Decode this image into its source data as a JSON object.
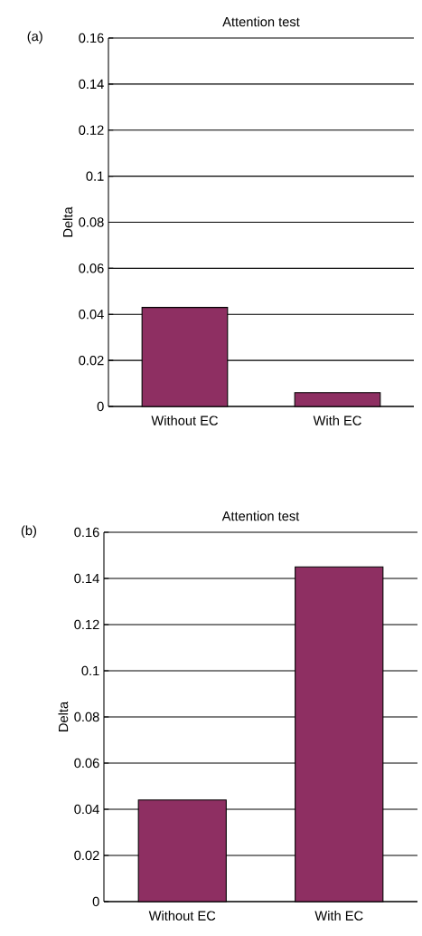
{
  "chart_data": [
    {
      "type": "bar",
      "title": "Attention test",
      "ylabel": "Delta",
      "categories": [
        "Without EC",
        "With EC"
      ],
      "values": [
        0.043,
        0.006
      ],
      "color": "#8e2f62",
      "ylim": [
        0,
        0.16
      ],
      "yticks": [
        0,
        0.02,
        0.04,
        0.06,
        0.08,
        0.1,
        0.12,
        0.14,
        0.16
      ],
      "grid": "y",
      "annotations": [
        "(a)"
      ]
    },
    {
      "type": "bar",
      "title": "Attention test",
      "ylabel": "Delta",
      "categories": [
        "Without EC",
        "With EC"
      ],
      "values": [
        0.044,
        0.145
      ],
      "color": "#8e2f62",
      "ylim": [
        0,
        0.16
      ],
      "yticks": [
        0,
        0.02,
        0.04,
        0.06,
        0.08,
        0.1,
        0.12,
        0.14,
        0.16
      ],
      "grid": "y",
      "annotations": [
        "(b)"
      ]
    }
  ]
}
